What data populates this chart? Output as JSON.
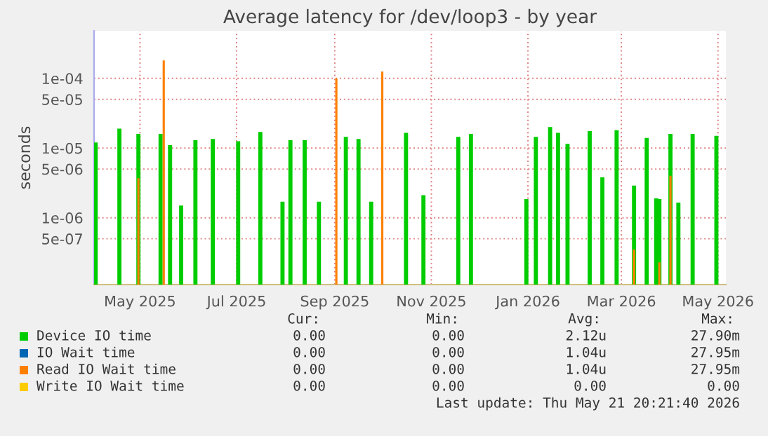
{
  "chart_data": {
    "type": "bar",
    "title": "Average latency for /dev/loop3 - by year",
    "ylabel": "seconds",
    "log": "y",
    "grid": true,
    "legend": "bottom",
    "xlim": [
      "2025-04-02",
      "2026-05-06"
    ],
    "xticks": [
      {
        "value": "2025-05-01",
        "label": "May 2025"
      },
      {
        "value": "2025-07-01",
        "label": "Jul 2025"
      },
      {
        "value": "2025-09-01",
        "label": "Sep 2025"
      },
      {
        "value": "2025-11-01",
        "label": "Nov 2025"
      },
      {
        "value": "2026-01-01",
        "label": "Jan 2026"
      },
      {
        "value": "2026-03-01",
        "label": "Mar 2026"
      },
      {
        "value": "2026-05-01",
        "label": "May 2026"
      }
    ],
    "ylim": [
      1.1e-07,
      0.00048
    ],
    "yticks": [
      {
        "value": 5e-07,
        "label": "5e-07"
      },
      {
        "value": 1e-06,
        "label": "1e-06"
      },
      {
        "value": 5e-06,
        "label": "5e-06"
      },
      {
        "value": 1e-05,
        "label": "1e-05"
      },
      {
        "value": 5e-05,
        "label": "5e-05"
      },
      {
        "value": 0.0001,
        "label": "1e-04"
      }
    ],
    "series": [
      {
        "name": "Device IO time",
        "color": "#00cc00",
        "x": [
          "2025-04-03",
          "2025-04-18",
          "2025-04-30",
          "2025-05-14",
          "2025-05-20",
          "2025-05-27",
          "2025-06-05",
          "2025-06-16",
          "2025-07-02",
          "2025-07-16",
          "2025-07-30",
          "2025-08-04",
          "2025-08-13",
          "2025-08-22",
          "2025-09-08",
          "2025-09-16",
          "2025-09-24",
          "2025-10-16",
          "2025-10-27",
          "2025-11-18",
          "2025-11-26",
          "2025-12-31",
          "2026-01-06",
          "2026-01-15",
          "2026-01-20",
          "2026-01-26",
          "2026-02-09",
          "2026-02-17",
          "2026-02-26",
          "2026-03-09",
          "2026-03-17",
          "2026-03-23",
          "2026-03-25",
          "2026-04-01",
          "2026-04-06",
          "2026-04-15",
          "2026-04-30"
        ],
        "values": [
          1.2e-05,
          1.9e-05,
          1.6e-05,
          1.6e-05,
          1.1e-05,
          1.5e-06,
          1.3e-05,
          1.35e-05,
          1.25e-05,
          1.7e-05,
          1.7e-06,
          1.3e-05,
          1.3e-05,
          1.7e-06,
          1.45e-05,
          1.35e-05,
          1.7e-06,
          1.65e-05,
          2.1e-06,
          1.45e-05,
          1.6e-05,
          1.85e-06,
          1.45e-05,
          2e-05,
          1.65e-05,
          1.15e-05,
          1.75e-05,
          3.8e-06,
          1.8e-05,
          2.9e-06,
          1.4e-05,
          1.9e-06,
          1.85e-06,
          1.6e-05,
          1.65e-06,
          1.6e-05,
          1.5e-05
        ]
      },
      {
        "name": "IO Wait time",
        "color": "#0066b3"
      },
      {
        "name": "Read IO Wait time",
        "color": "#ff8000",
        "x": [
          "2025-04-30",
          "2025-05-16",
          "2025-09-02",
          "2025-10-01",
          "2026-03-09",
          "2026-03-25",
          "2026-04-01"
        ],
        "values": [
          3.7e-06,
          0.00018,
          0.0001,
          0.000125,
          3.5e-07,
          2.3e-07,
          4e-06
        ]
      },
      {
        "name": "Write IO Wait time",
        "color": "#ffcc00"
      }
    ],
    "annotations": [
      "Cur:",
      "Min:",
      "Avg:",
      "Max:",
      "0.00",
      "0.00",
      "2.12u",
      "27.90m",
      "0.00",
      "0.00",
      "1.04u",
      "27.95m",
      "0.00",
      "0.00",
      "1.04u",
      "27.95m",
      "0.00",
      "0.00",
      "0.00",
      "0.00",
      "Last update: Thu May 21 20:21:40 2026"
    ]
  }
}
